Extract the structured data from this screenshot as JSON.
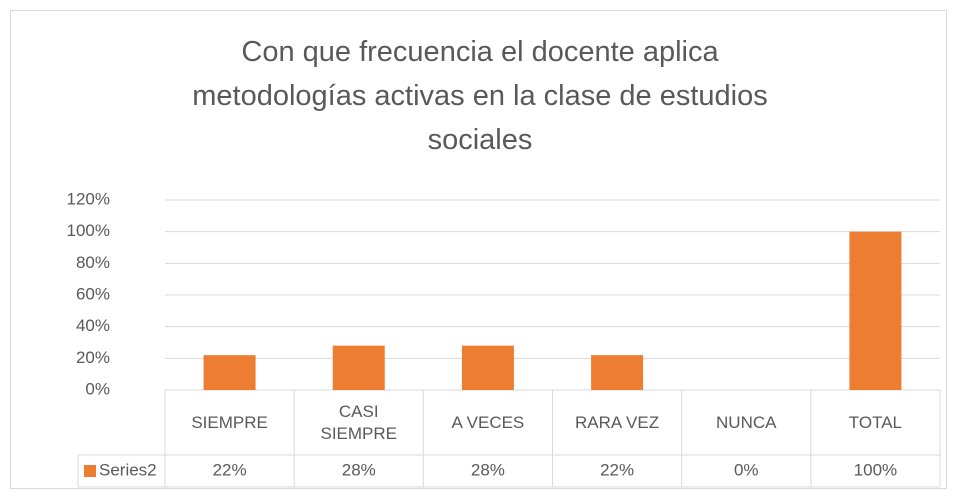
{
  "chart_data": {
    "type": "bar",
    "title": "Con que frecuencia el docente aplica metodologías activas en la clase de estudios sociales",
    "categories": [
      "SIEMPRE",
      "CASI SIEMPRE",
      "A VECES",
      "RARA VEZ",
      "NUNCA",
      "TOTAL"
    ],
    "series": [
      {
        "name": "Series2",
        "color": "#ed7d31",
        "values": [
          22,
          28,
          28,
          22,
          0,
          100
        ],
        "value_labels": [
          "22%",
          "28%",
          "28%",
          "22%",
          "0%",
          "100%"
        ]
      }
    ],
    "ylim": [
      0,
      120
    ],
    "yticks": [
      {
        "value": 0,
        "label": "0%"
      },
      {
        "value": 20,
        "label": "20%"
      },
      {
        "value": 40,
        "label": "40%"
      },
      {
        "value": 60,
        "label": "60%"
      },
      {
        "value": 80,
        "label": "80%"
      },
      {
        "value": 100,
        "label": "100%"
      },
      {
        "value": 120,
        "label": "120%"
      }
    ],
    "grid": true
  }
}
